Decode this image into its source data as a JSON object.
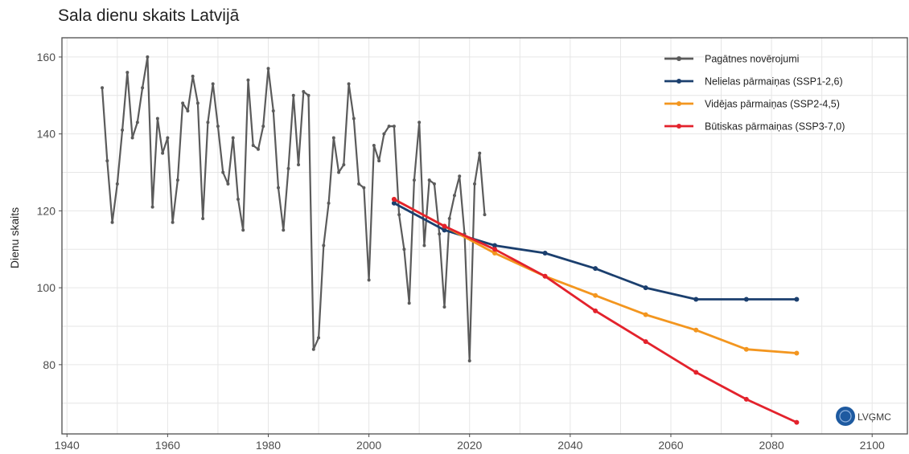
{
  "chart_data": {
    "type": "line",
    "title": "Sala dienu skaits Latvijā",
    "xlabel": "",
    "ylabel": "Dienu skaits",
    "xlim": [
      1939,
      2107
    ],
    "ylim": [
      62,
      165
    ],
    "xticks": [
      1940,
      1960,
      1980,
      2000,
      2020,
      2040,
      2060,
      2080,
      2100
    ],
    "yticks": [
      80,
      100,
      120,
      140,
      160
    ],
    "grid": true,
    "legend_position": "top-right",
    "series": [
      {
        "name": "Pagātnes novērojumi",
        "color": "#5b5b5b",
        "x": [
          1947,
          1948,
          1949,
          1950,
          1951,
          1952,
          1953,
          1954,
          1955,
          1956,
          1957,
          1958,
          1959,
          1960,
          1961,
          1962,
          1963,
          1964,
          1965,
          1966,
          1967,
          1968,
          1969,
          1970,
          1971,
          1972,
          1973,
          1974,
          1975,
          1976,
          1977,
          1978,
          1979,
          1980,
          1981,
          1982,
          1983,
          1984,
          1985,
          1986,
          1987,
          1988,
          1989,
          1990,
          1991,
          1992,
          1993,
          1994,
          1995,
          1996,
          1997,
          1998,
          1999,
          2000,
          2001,
          2002,
          2003,
          2004,
          2005,
          2006,
          2007,
          2008,
          2009,
          2010,
          2011,
          2012,
          2013,
          2014,
          2015,
          2016,
          2017,
          2018,
          2019,
          2020,
          2021,
          2022,
          2023
        ],
        "y": [
          152,
          133,
          117,
          127,
          141,
          156,
          139,
          143,
          152,
          160,
          121,
          144,
          135,
          139,
          117,
          128,
          148,
          146,
          155,
          148,
          118,
          143,
          153,
          142,
          130,
          127,
          139,
          123,
          115,
          154,
          137,
          136,
          142,
          157,
          146,
          126,
          115,
          131,
          150,
          132,
          151,
          150,
          84,
          87,
          111,
          122,
          139,
          130,
          132,
          153,
          144,
          127,
          126,
          102,
          137,
          133,
          140,
          142,
          142,
          119,
          110,
          96,
          128,
          143,
          111,
          128,
          127,
          114,
          95,
          118,
          124,
          129,
          114,
          81,
          127,
          135,
          119
        ]
      },
      {
        "name": "Nelielas pārmaiņas (SSP1-2,6)",
        "color": "#1b3f6e",
        "x": [
          2005,
          2015,
          2025,
          2035,
          2045,
          2055,
          2065,
          2075,
          2085
        ],
        "y": [
          122,
          115,
          111,
          109,
          105,
          100,
          97,
          97,
          97
        ]
      },
      {
        "name": "Vidējas pārmaiņas (SSP2-4,5)",
        "color": "#f3961f",
        "x": [
          2005,
          2015,
          2025,
          2035,
          2045,
          2055,
          2065,
          2075,
          2085
        ],
        "y": [
          123,
          116,
          109,
          103,
          98,
          93,
          89,
          84,
          83
        ]
      },
      {
        "name": "Būtiskas pārmaiņas (SSP3-7,0)",
        "color": "#e3222c",
        "x": [
          2005,
          2015,
          2025,
          2035,
          2045,
          2055,
          2065,
          2075,
          2085
        ],
        "y": [
          123,
          116,
          110,
          103,
          94,
          86,
          78,
          71,
          65
        ]
      }
    ]
  },
  "logo": {
    "text": "LVĢMC",
    "color": "#1e5aa0"
  }
}
